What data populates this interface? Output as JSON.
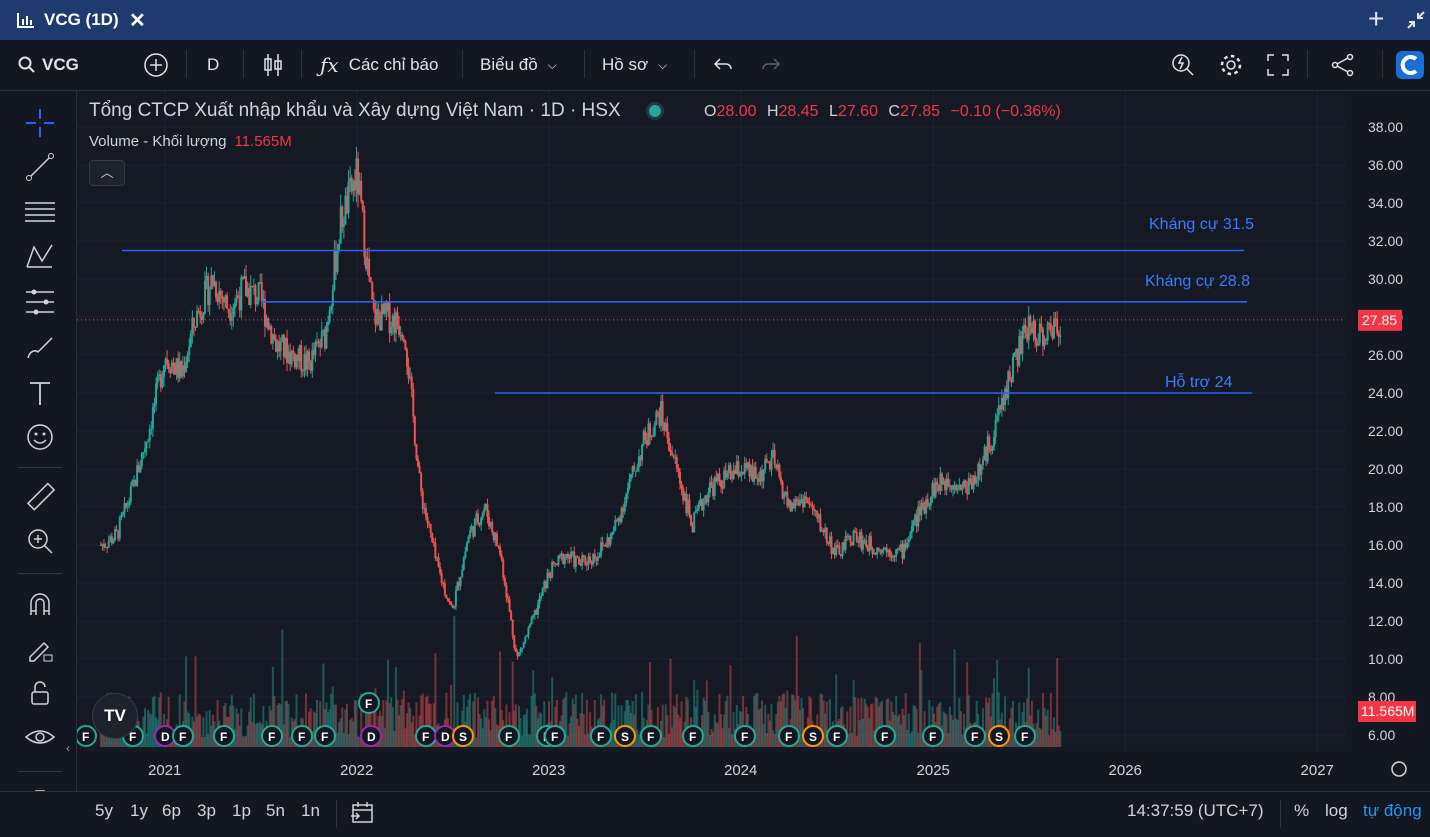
{
  "tab": {
    "title": "VCG (1D)",
    "close": "✕",
    "new_tab": "+"
  },
  "toolbar": {
    "symbol": "VCG",
    "interval": "D",
    "indicators_label": "Các chỉ báo",
    "chart_label": "Biểu đồ",
    "profile_label": "Hồ sơ"
  },
  "legend": {
    "title": "Tổng CTCP Xuất nhập khẩu và Xây dựng Việt Nam · 1D · HSX",
    "o_label": "O",
    "o": "28.00",
    "h_label": "H",
    "h": "28.45",
    "l_label": "L",
    "l": "27.60",
    "c_label": "C",
    "c": "27.85",
    "change": "−0.10 (−0.36%)",
    "volume_label": "Volume - Khối lượng",
    "volume_value": "11.565M"
  },
  "annotations": [
    "Kháng cự 31.5",
    "Kháng cự 28.8",
    "Hỗ trợ 24"
  ],
  "chart_data": {
    "type": "candlestick",
    "ylim": [
      5,
      38.5
    ],
    "y_ticks": [
      "38.00",
      "36.00",
      "34.00",
      "32.00",
      "30.00",
      "28.00",
      "26.00",
      "24.00",
      "22.00",
      "20.00",
      "18.00",
      "16.00",
      "14.00",
      "12.00",
      "10.00",
      "8.00",
      "6.00"
    ],
    "x_ticks": [
      "2021",
      "2022",
      "2023",
      "2024",
      "2025",
      "2026",
      "2027"
    ],
    "last_price_label": "27.85",
    "volume_label": "11.565M",
    "horizontal_lines": [
      {
        "label": "Kháng cự 31.5",
        "value": 31.5
      },
      {
        "label": "Kháng cự 28.8",
        "value": 28.8
      },
      {
        "label": "Hỗ trợ 24",
        "value": 24
      }
    ],
    "price_path": [
      [
        "2020-09-01",
        16.0
      ],
      [
        "2020-10-01",
        16.5
      ],
      [
        "2020-11-01",
        19.0
      ],
      [
        "2020-12-01",
        22.0
      ],
      [
        "2021-01-01",
        26.0
      ],
      [
        "2021-02-01",
        25.0
      ],
      [
        "2021-03-01",
        28.0
      ],
      [
        "2021-04-01",
        30.0
      ],
      [
        "2021-05-01",
        28.5
      ],
      [
        "2021-06-01",
        29.5
      ],
      [
        "2021-07-01",
        29.0
      ],
      [
        "2021-08-01",
        26.5
      ],
      [
        "2021-09-01",
        26.0
      ],
      [
        "2021-10-01",
        25.5
      ],
      [
        "2021-11-01",
        27.0
      ],
      [
        "2021-12-01",
        33.0
      ],
      [
        "2022-01-01",
        35.5
      ],
      [
        "2022-02-01",
        28.0
      ],
      [
        "2022-03-01",
        28.0
      ],
      [
        "2022-04-01",
        27.5
      ],
      [
        "2022-05-01",
        19.0
      ],
      [
        "2022-06-01",
        15.0
      ],
      [
        "2022-07-01",
        12.5
      ],
      [
        "2022-08-01",
        16.5
      ],
      [
        "2022-09-01",
        18.0
      ],
      [
        "2022-10-01",
        15.5
      ],
      [
        "2022-11-01",
        10.0
      ],
      [
        "2022-12-01",
        12.0
      ],
      [
        "2023-01-01",
        14.5
      ],
      [
        "2023-02-01",
        15.5
      ],
      [
        "2023-03-01",
        15.0
      ],
      [
        "2023-04-01",
        15.5
      ],
      [
        "2023-05-01",
        16.5
      ],
      [
        "2023-06-01",
        19.0
      ],
      [
        "2023-07-01",
        21.5
      ],
      [
        "2023-08-01",
        23.0
      ],
      [
        "2023-09-01",
        20.0
      ],
      [
        "2023-10-01",
        17.0
      ],
      [
        "2023-11-01",
        19.0
      ],
      [
        "2023-12-01",
        19.5
      ],
      [
        "2024-01-01",
        20.0
      ],
      [
        "2024-02-01",
        19.5
      ],
      [
        "2024-03-01",
        20.5
      ],
      [
        "2024-04-01",
        18.0
      ],
      [
        "2024-05-01",
        18.5
      ],
      [
        "2024-06-01",
        17.0
      ],
      [
        "2024-07-01",
        15.5
      ],
      [
        "2024-08-01",
        16.5
      ],
      [
        "2024-09-01",
        16.0
      ],
      [
        "2024-10-01",
        15.8
      ],
      [
        "2024-11-01",
        15.6
      ],
      [
        "2024-12-01",
        17.5
      ],
      [
        "2025-01-01",
        19.0
      ],
      [
        "2025-02-01",
        19.5
      ],
      [
        "2025-03-01",
        19.0
      ],
      [
        "2025-04-01",
        20.0
      ],
      [
        "2025-05-01",
        22.5
      ],
      [
        "2025-06-01",
        25.5
      ],
      [
        "2025-07-01",
        27.5
      ],
      [
        "2025-08-01",
        27.0
      ],
      [
        "2025-09-01",
        27.85
      ]
    ],
    "event_markers": [
      "F",
      "F",
      "D",
      "F",
      "F",
      "F",
      "F",
      "F",
      "D",
      "F",
      "D",
      "S",
      "F",
      "F",
      "F",
      "F",
      "S",
      "F",
      "F",
      "F",
      "F",
      "S",
      "F",
      "F",
      "F",
      "F",
      "S",
      "F"
    ]
  },
  "bottombar": {
    "ranges": [
      "5y",
      "1y",
      "6p",
      "3p",
      "1p",
      "5n",
      "1n"
    ],
    "time": "14:37:59 (UTC+7)",
    "percent": "%",
    "log": "log",
    "auto": "tự động"
  },
  "logo": "TV",
  "colors": {
    "up": "#26a69a",
    "down": "#ef5350",
    "line": "#2962ff",
    "accent": "#2196f3"
  }
}
